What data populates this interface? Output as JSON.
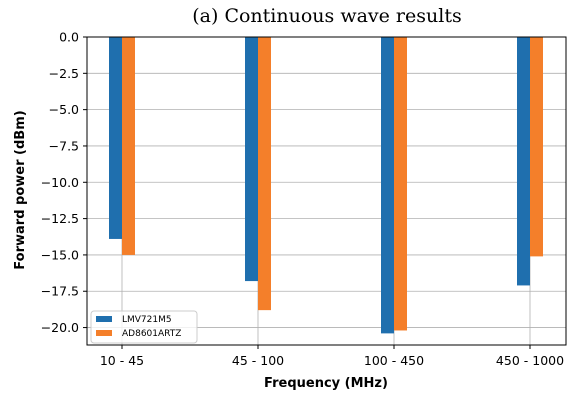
{
  "chart_data": {
    "type": "bar",
    "title": "(a) Continuous wave results",
    "xlabel": "Frequency (MHz)",
    "ylabel": "Forward power (dBm)",
    "categories": [
      "10 - 45",
      "45 - 100",
      "100 - 450",
      "450 - 1000"
    ],
    "ylim": [
      -21.2,
      0
    ],
    "yticks": [
      0.0,
      -2.5,
      -5.0,
      -7.5,
      -10.0,
      -12.5,
      -15.0,
      -17.5,
      -20.0
    ],
    "ytick_labels": [
      "0.0",
      "−2.5",
      "−5.0",
      "−7.5",
      "−10.0",
      "−12.5",
      "−15.0",
      "−17.5",
      "−20.0"
    ],
    "grid": true,
    "legend_position": "lower-left",
    "series": [
      {
        "name": "LMV721M5",
        "color": "#1f6fae",
        "values": [
          -13.9,
          -16.8,
          -20.4,
          -17.1
        ]
      },
      {
        "name": "AD8601ARTZ",
        "color": "#f47f2a",
        "values": [
          -15.0,
          -18.8,
          -20.2,
          -15.1
        ]
      }
    ]
  }
}
